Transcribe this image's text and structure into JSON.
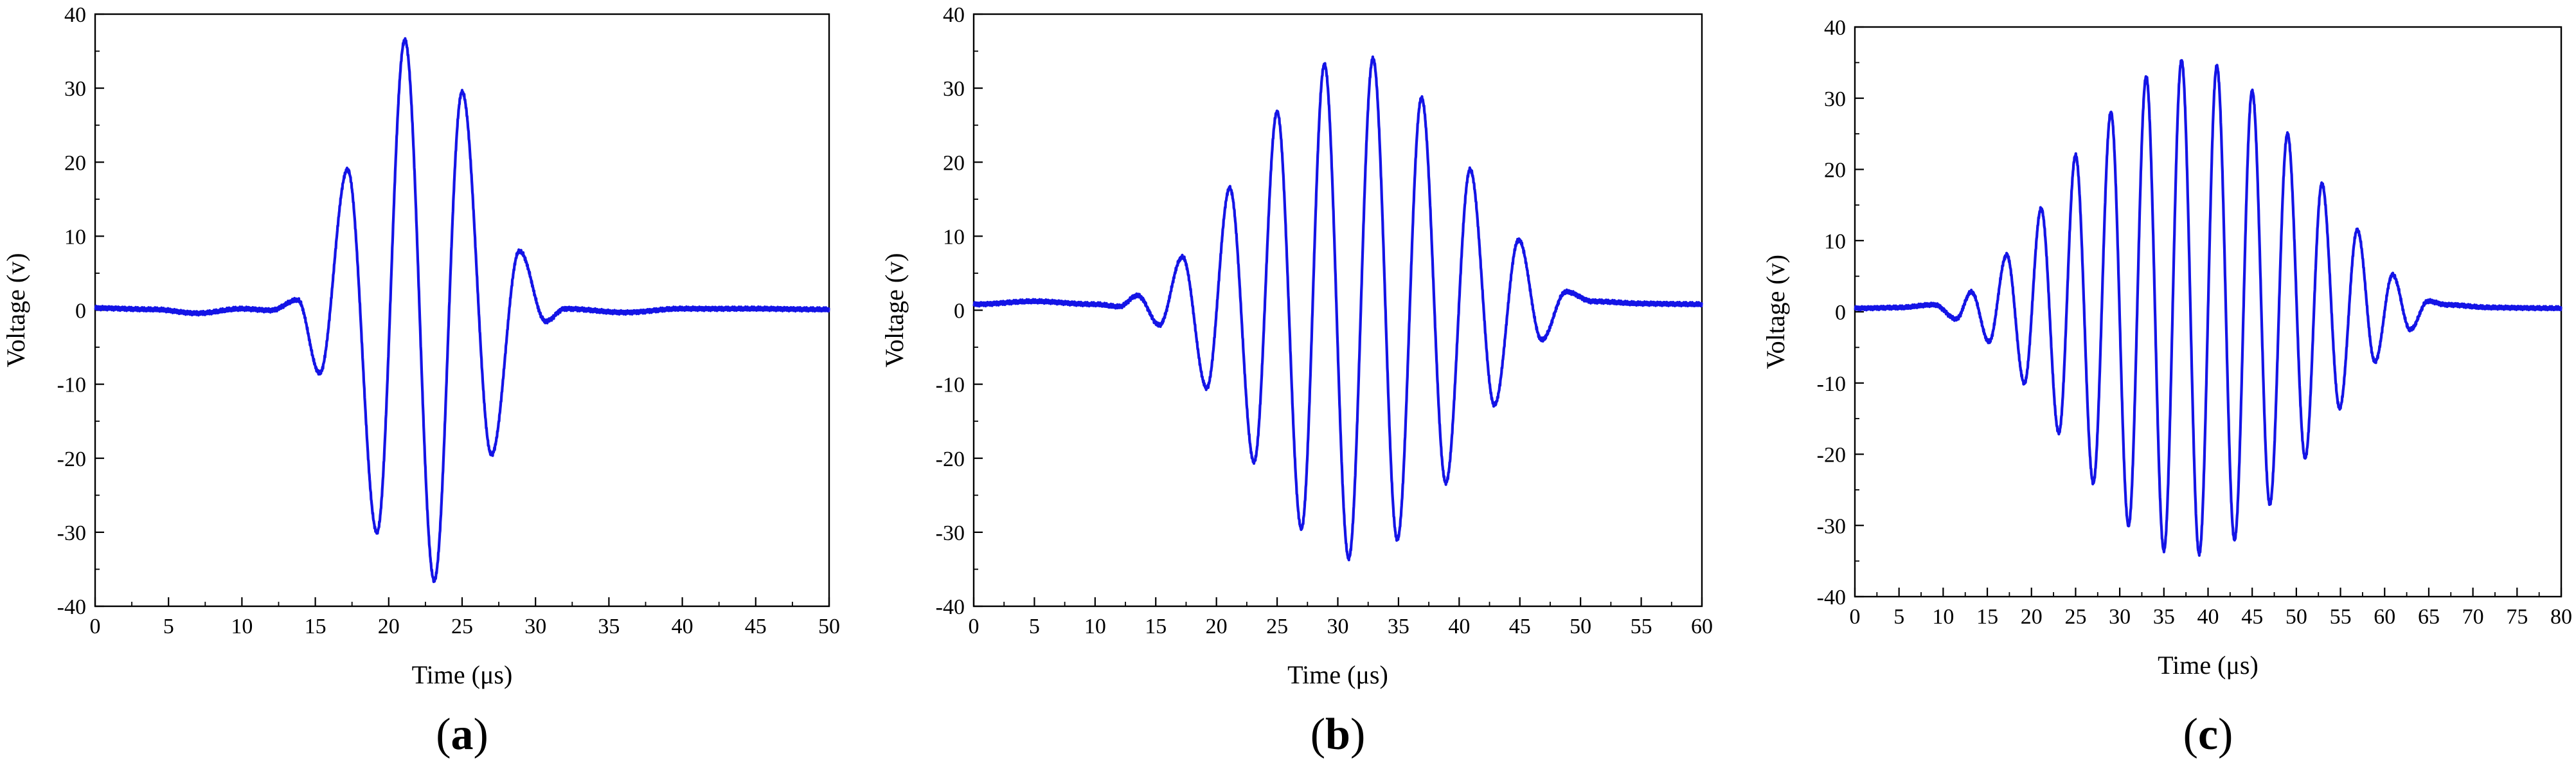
{
  "chart_data": [
    {
      "type": "line",
      "panel_label": "(a)",
      "panel_letter": "a",
      "xlabel": "Time (μs)",
      "ylabel": "Voltage (v)",
      "xlim": [
        0,
        50
      ],
      "ylim": [
        -40,
        40
      ],
      "xticks": [
        0,
        5,
        10,
        15,
        20,
        25,
        30,
        35,
        40,
        45,
        50
      ],
      "yticks": [
        -40,
        -30,
        -20,
        -10,
        0,
        10,
        20,
        30,
        40
      ],
      "grid": false,
      "color": "#1414e6",
      "series": [
        {
          "x": [
            0,
            4,
            7,
            10,
            12,
            13.8,
            15.3,
            17.2,
            19.2,
            21.1,
            23.1,
            25.0,
            27.0,
            28.9,
            30.7,
            32,
            36,
            40,
            45,
            50
          ],
          "y": [
            0.3,
            0.1,
            -0.4,
            0.2,
            0,
            1.4,
            -8.5,
            19.0,
            -30.0,
            36.5,
            -36.5,
            29.5,
            -19.5,
            8.0,
            -1.5,
            0.2,
            -0.3,
            0.2,
            0.2,
            0.1
          ]
        }
      ]
    },
    {
      "type": "line",
      "panel_label": "(b)",
      "panel_letter": "b",
      "xlabel": "Time (μs)",
      "ylabel": "Voltage (v)",
      "xlim": [
        0,
        60
      ],
      "ylim": [
        -40,
        40
      ],
      "xticks": [
        0,
        5,
        10,
        15,
        20,
        25,
        30,
        35,
        40,
        45,
        50,
        55,
        60
      ],
      "yticks": [
        -40,
        -30,
        -20,
        -10,
        0,
        10,
        20,
        30,
        40
      ],
      "grid": false,
      "color": "#1414e6",
      "series": [
        {
          "x": [
            0,
            5,
            10,
            12,
            13.5,
            15.3,
            17.2,
            19.2,
            21.1,
            23.1,
            25.0,
            27.0,
            28.9,
            30.9,
            32.9,
            34.9,
            36.9,
            38.9,
            40.9,
            42.9,
            44.9,
            46.8,
            48.8,
            51,
            55,
            60
          ],
          "y": [
            0.8,
            1.2,
            0.8,
            0.5,
            2.0,
            -2.0,
            7.2,
            -10.5,
            16.5,
            -20.5,
            26.8,
            -29.5,
            33.2,
            -33.5,
            34.0,
            -31.0,
            28.7,
            -23.3,
            19.0,
            -12.8,
            9.5,
            -4.0,
            2.5,
            1.2,
            0.9,
            0.8
          ]
        }
      ]
    },
    {
      "type": "line",
      "panel_label": "(c)",
      "panel_letter": "c",
      "xlabel": "Time (μs)",
      "ylabel": "Voltage (v)",
      "xlim": [
        0,
        80
      ],
      "ylim": [
        -40,
        40
      ],
      "xticks": [
        0,
        5,
        10,
        15,
        20,
        25,
        30,
        35,
        40,
        45,
        50,
        55,
        60,
        65,
        70,
        75,
        80
      ],
      "yticks": [
        -40,
        -30,
        -20,
        -10,
        0,
        10,
        20,
        30,
        40
      ],
      "grid": false,
      "color": "#1414e6",
      "series": [
        {
          "x": [
            0,
            5,
            9,
            11.5,
            13.2,
            15.2,
            17.2,
            19.2,
            21.1,
            23.1,
            25.0,
            27.0,
            29.0,
            31.0,
            33.0,
            35.0,
            37.0,
            39.0,
            41.0,
            43.0,
            45.0,
            47.0,
            49.0,
            51.0,
            52.9,
            54.9,
            56.9,
            58.9,
            60.9,
            62.9,
            64.9,
            67,
            72,
            80
          ],
          "y": [
            0.5,
            0.6,
            1.0,
            -1.0,
            2.8,
            -4.2,
            8.0,
            -10.0,
            14.5,
            -17.0,
            22.0,
            -24.0,
            28.0,
            -30.0,
            33.0,
            -33.5,
            35.3,
            -34.0,
            34.5,
            -32.0,
            31.0,
            -27.0,
            25.0,
            -20.5,
            18.0,
            -13.5,
            11.5,
            -7.0,
            5.2,
            -2.5,
            1.5,
            1.0,
            0.6,
            0.5
          ]
        }
      ]
    }
  ]
}
